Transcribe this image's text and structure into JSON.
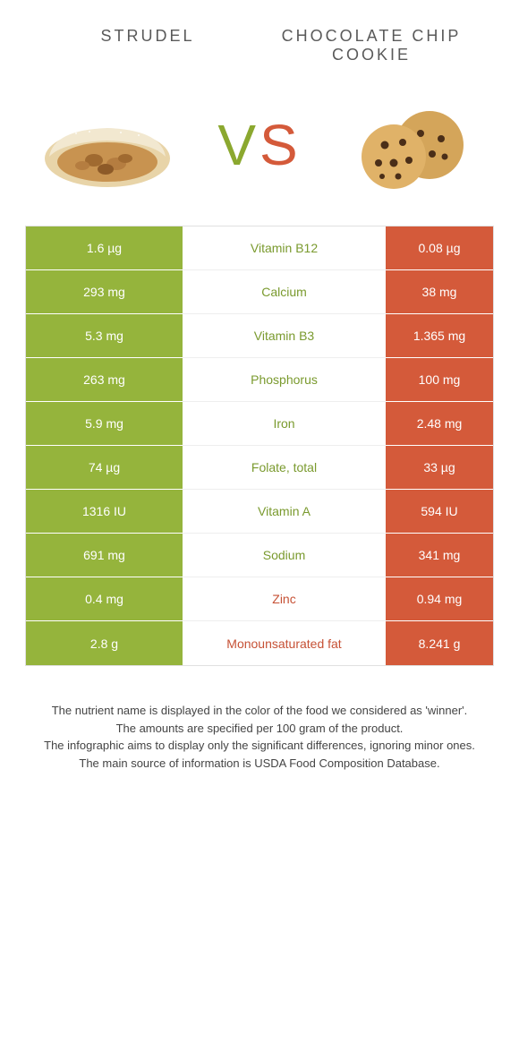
{
  "header": {
    "left": "STRUDEL",
    "right": "CHOCOLATE CHIP COOKIE"
  },
  "vs": {
    "v": "V",
    "s": "S"
  },
  "colors": {
    "green_bg": "#95b43c",
    "brown_bg": "#d45a3a",
    "green_txt": "#7a9a2e",
    "brown_txt": "#c65135"
  },
  "rows": [
    {
      "left": "1.6 µg",
      "mid": "Vitamin B12",
      "right": "0.08 µg",
      "winner": "left"
    },
    {
      "left": "293 mg",
      "mid": "Calcium",
      "right": "38 mg",
      "winner": "left"
    },
    {
      "left": "5.3 mg",
      "mid": "Vitamin B3",
      "right": "1.365 mg",
      "winner": "left"
    },
    {
      "left": "263 mg",
      "mid": "Phosphorus",
      "right": "100 mg",
      "winner": "left"
    },
    {
      "left": "5.9 mg",
      "mid": "Iron",
      "right": "2.48 mg",
      "winner": "left"
    },
    {
      "left": "74 µg",
      "mid": "Folate, total",
      "right": "33 µg",
      "winner": "left"
    },
    {
      "left": "1316 IU",
      "mid": "Vitamin A",
      "right": "594 IU",
      "winner": "left"
    },
    {
      "left": "691 mg",
      "mid": "Sodium",
      "right": "341 mg",
      "winner": "left"
    },
    {
      "left": "0.4 mg",
      "mid": "Zinc",
      "right": "0.94 mg",
      "winner": "right"
    },
    {
      "left": "2.8 g",
      "mid": "Monounsaturated fat",
      "right": "8.241 g",
      "winner": "right"
    }
  ],
  "footer": {
    "l1": "The nutrient name is displayed in the color of the food we considered as 'winner'.",
    "l2": "The amounts are specified per 100 gram of the product.",
    "l3": "The infographic aims to display only the significant differences, ignoring minor ones.",
    "l4": "The main source of information is USDA Food Composition Database."
  }
}
